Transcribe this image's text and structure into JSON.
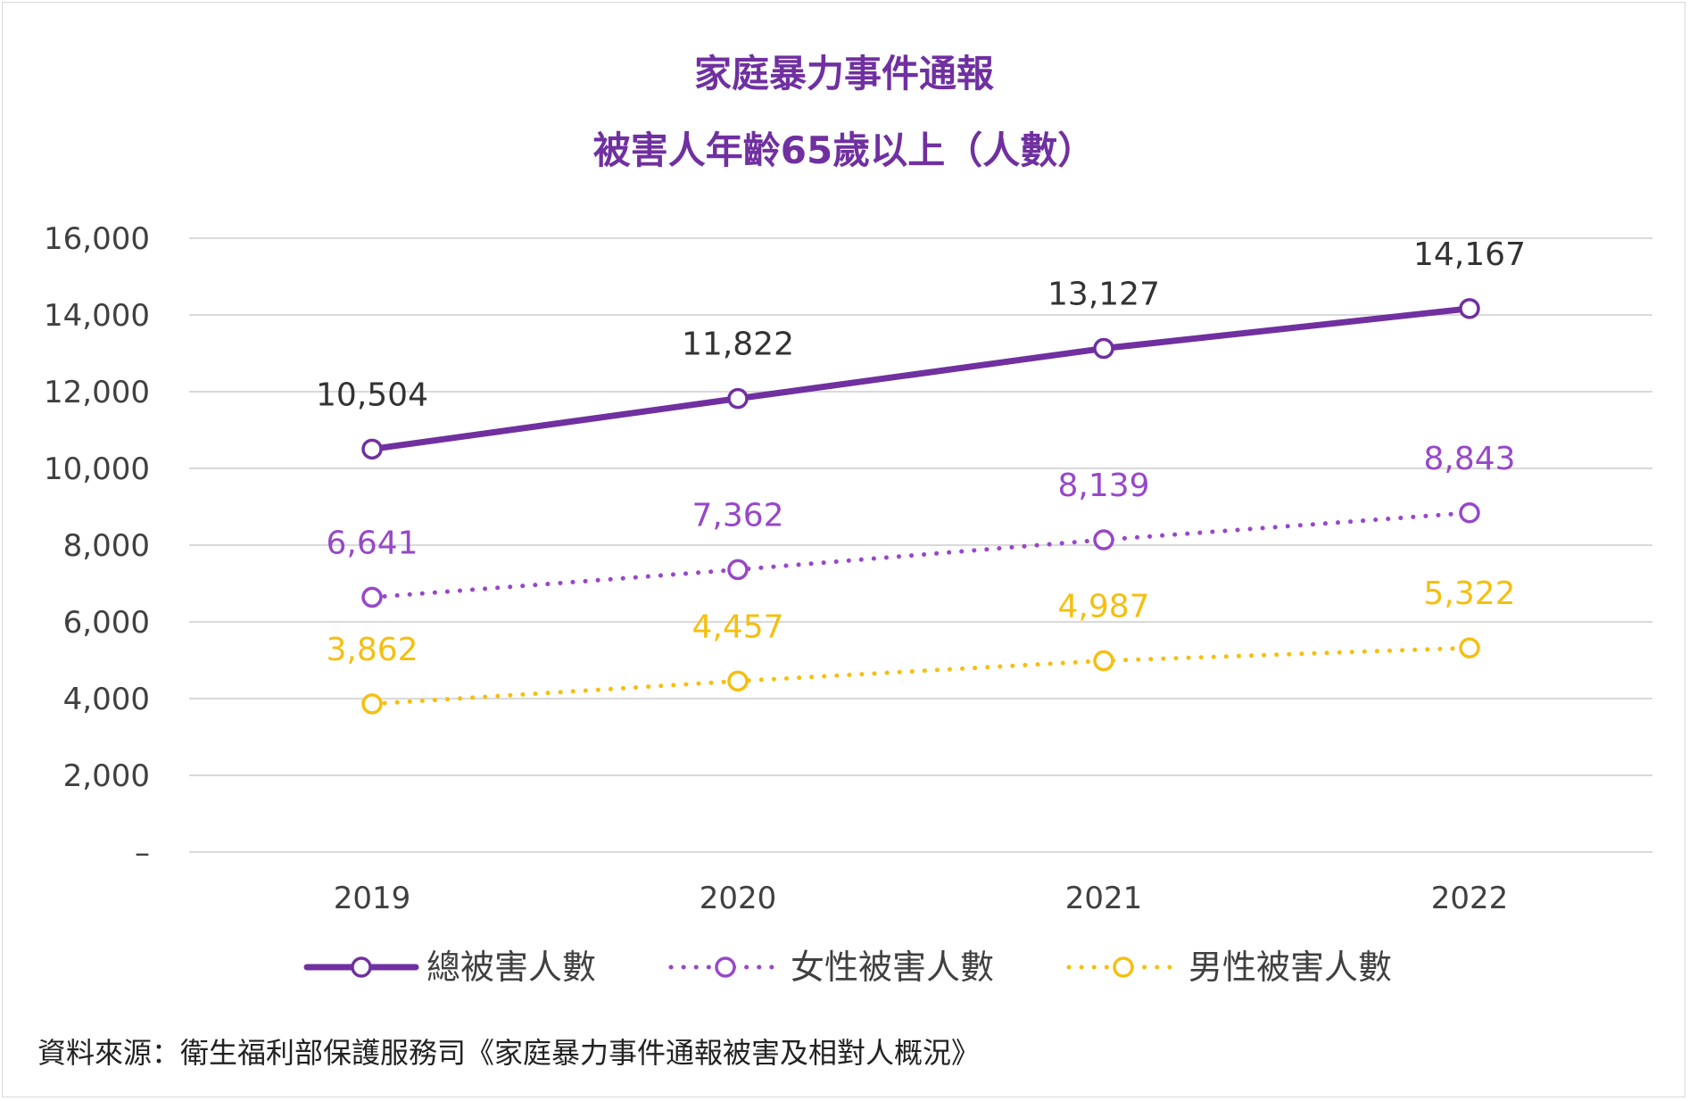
{
  "chart_data": {
    "type": "line",
    "title": "家庭暴力事件通報",
    "subtitle": "被害人年齡65歲以上（人數）",
    "categories": [
      "2019",
      "2020",
      "2021",
      "2022"
    ],
    "ylim": [
      0,
      16000
    ],
    "yticks": [
      {
        "value": 0,
        "label": "–"
      },
      {
        "value": 2000,
        "label": "2,000"
      },
      {
        "value": 4000,
        "label": "4,000"
      },
      {
        "value": 6000,
        "label": "6,000"
      },
      {
        "value": 8000,
        "label": "8,000"
      },
      {
        "value": 10000,
        "label": "10,000"
      },
      {
        "value": 12000,
        "label": "12,000"
      },
      {
        "value": 14000,
        "label": "14,000"
      },
      {
        "value": 16000,
        "label": "16,000"
      }
    ],
    "grid": true,
    "legend_position": "bottom",
    "series": [
      {
        "name": "總被害人數",
        "values": [
          10504,
          11822,
          13127,
          14167
        ],
        "labels": [
          "10,504",
          "11,822",
          "13,127",
          "14,167"
        ],
        "color": "#7030a0",
        "label_color": "#333333",
        "style": "solid"
      },
      {
        "name": "女性被害人數",
        "values": [
          6641,
          7362,
          8139,
          8843
        ],
        "labels": [
          "6,641",
          "7,362",
          "8,139",
          "8,843"
        ],
        "color": "#9747c9",
        "label_color": "#9747c9",
        "style": "dotted"
      },
      {
        "name": "男性被害人數",
        "values": [
          3862,
          4457,
          4987,
          5322
        ],
        "labels": [
          "3,862",
          "4,457",
          "4,987",
          "5,322"
        ],
        "color": "#f5bf0f",
        "label_color": "#f5bf0f",
        "style": "dotted"
      }
    ]
  },
  "source_note": "資料來源：衛生福利部保護服務司《家庭暴力事件通報被害及相對人概況》"
}
